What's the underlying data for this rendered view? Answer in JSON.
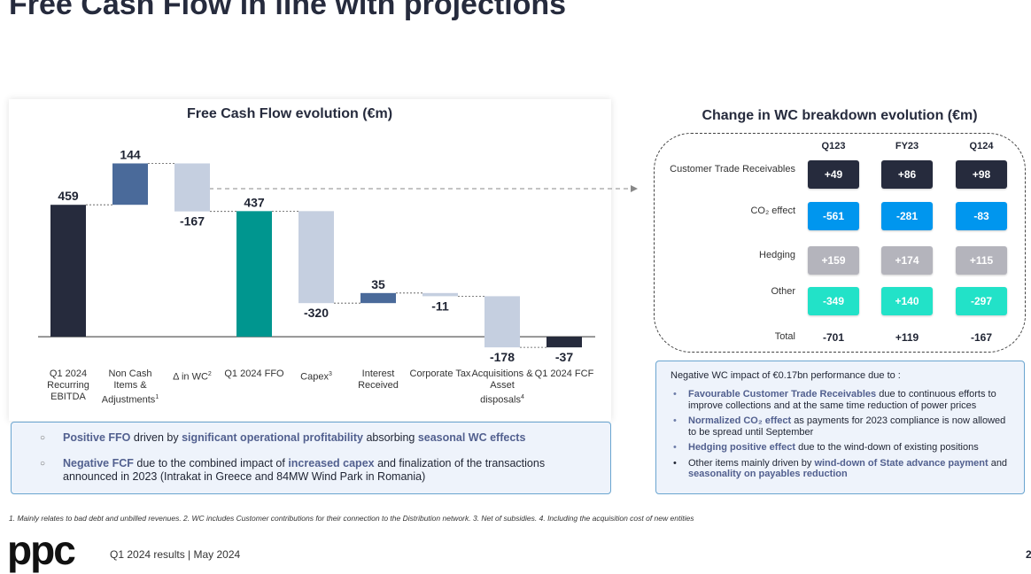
{
  "title": "Free Cash Flow in line with projections",
  "chart_data": {
    "type": "waterfall",
    "title": "Free Cash Flow evolution (€m)",
    "categories": [
      "Q1 2024 Recurring EBITDA",
      "Non Cash Items & Adjustments",
      "Δ in WC",
      "Q1 2024  FFO",
      "Capex",
      "Interest Received",
      "Corporate Tax",
      "Acquisitions & Asset disposals",
      "Q1 2024 FCF"
    ],
    "category_notes": [
      null,
      "1",
      "2",
      null,
      "3",
      null,
      null,
      "4",
      null
    ],
    "values": [
      459,
      144,
      -167,
      437,
      -320,
      35,
      -11,
      -178,
      -37
    ],
    "kinds": [
      "total",
      "delta",
      "delta",
      "total",
      "delta",
      "delta",
      "delta",
      "delta",
      "total"
    ],
    "colors": [
      "#262b3d",
      "#4a6a9a",
      "#c5cfe0",
      "#00968f",
      "#c5cfe0",
      "#4a6a9a",
      "#c5cfe0",
      "#c5cfe0",
      "#262b3d"
    ],
    "ylim": [
      -100,
      700
    ]
  },
  "wc": {
    "title": "Change in WC  breakdown  evolution (€m)",
    "columns": [
      "Q123",
      "FY23",
      "Q124"
    ],
    "rows": [
      {
        "label": "Customer Trade Receivables",
        "color": "#262b3d",
        "cells": [
          "+49",
          "+86",
          "+98"
        ]
      },
      {
        "label": "CO₂ effect",
        "color": "#0096ee",
        "cells": [
          "-561",
          "-281",
          "-83"
        ]
      },
      {
        "label": "Hedging",
        "color": "#b4b4bc",
        "cells": [
          "+159",
          "+174",
          "+115"
        ]
      },
      {
        "label": "Other",
        "color": "#22e2c8",
        "cells": [
          "-349",
          "+140",
          "-297"
        ]
      }
    ],
    "total": {
      "label": "Total",
      "cells": [
        "-701",
        "+119",
        "-167"
      ]
    }
  },
  "left_notes": [
    [
      {
        "text": "Positive FFO",
        "strong": true
      },
      {
        "text": " driven by "
      },
      {
        "text": "significant operational profitability",
        "strong": true
      },
      {
        "text": " absorbing "
      },
      {
        "text": "seasonal WC effects",
        "strong": true
      }
    ],
    [
      {
        "text": "Negative FCF",
        "strong": true
      },
      {
        "text": " due to the combined impact of "
      },
      {
        "text": "increased capex",
        "strong": true
      },
      {
        "text": "  and finalization of the transactions announced in 2023 (Intrakat in Greece and  84MW Wind Park in Romania)"
      }
    ]
  ],
  "right_notes": {
    "heading": "Negative WC impact of €0.17bn performance due to :",
    "bullets": [
      [
        {
          "text": "Favourable Customer Trade Receivables",
          "strong": true
        },
        {
          "text": " due to continuous efforts to improve collections and at the same time reduction of power prices"
        }
      ],
      [
        {
          "text": "Normalized CO₂ effect",
          "strong": true
        },
        {
          "text": " as payments for 2023 compliance is now allowed to be spread until September"
        }
      ],
      [
        {
          "text": "Hedging positive effect",
          "strong": true
        },
        {
          "text": " due to the wind-down of existing positions"
        }
      ],
      [
        {
          "text": "Other items mainly driven by "
        },
        {
          "text": "wind-down of State advance payment",
          "strong": true
        },
        {
          "text": " and "
        },
        {
          "text": "seasonality on payables reduction",
          "strong": true
        }
      ]
    ]
  },
  "footnote": "1. Mainly relates to bad debt and  unbilled revenues. 2. WC includes Customer contributions for their connection to the Distribution network. 3. Net of subsidies. 4. Including the acquisition cost of  new entities",
  "logo": "ppc",
  "footer": "Q1 2024 results | May 2024",
  "page_number": "2"
}
